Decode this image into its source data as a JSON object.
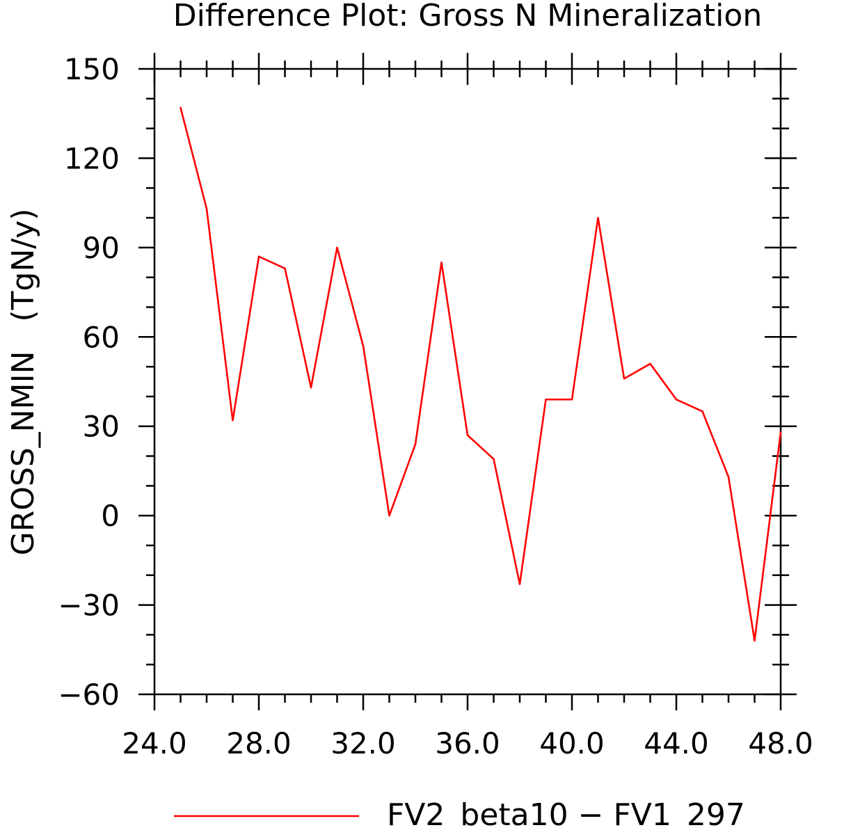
{
  "chart_data": {
    "type": "line",
    "title": "Difference Plot: Gross N Mineralization",
    "ylabel": "GROSS_NMIN   (TgN/y)",
    "xlabel": "",
    "xlim": [
      24,
      48
    ],
    "ylim": [
      -60,
      150
    ],
    "x_ticks": [
      "24.0",
      "28.0",
      "32.0",
      "36.0",
      "40.0",
      "44.0",
      "48.0"
    ],
    "y_ticks": [
      "150",
      "120",
      "90",
      "60",
      "30",
      "0",
      "−30",
      "−60"
    ],
    "grid": false,
    "legend_position": "bottom",
    "series": [
      {
        "name": "FV2_beta10 − FV1_297",
        "color": "#ff0000",
        "x": [
          25,
          26,
          27,
          28,
          29,
          30,
          31,
          32,
          33,
          34,
          35,
          36,
          37,
          38,
          39,
          40,
          41,
          42,
          43,
          44,
          45,
          46,
          47,
          48
        ],
        "y": [
          137,
          103,
          32,
          87,
          83,
          43,
          90,
          57,
          0,
          24,
          85,
          27,
          19,
          -23,
          39,
          39,
          100,
          46,
          51,
          39,
          35,
          13,
          -42,
          28
        ]
      }
    ]
  }
}
